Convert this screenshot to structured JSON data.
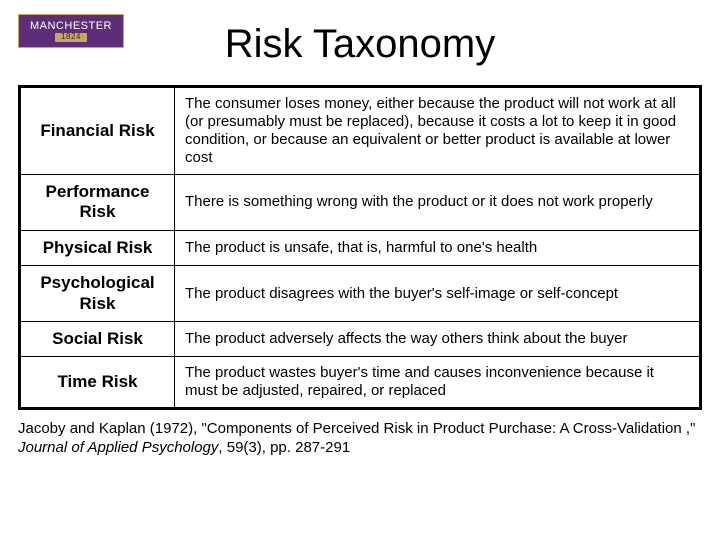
{
  "logo": {
    "text": "MANCHESTER",
    "year": "1824"
  },
  "title": "Risk Taxonomy",
  "table": {
    "rows": [
      {
        "label": "Financial Risk",
        "desc": "The consumer loses money, either because the product will not work at all (or presumably must be replaced), because it costs a lot to keep it in good condition, or because an equivalent or better product is available at lower cost"
      },
      {
        "label": "Performance Risk",
        "desc": "There is something wrong with the product or it does not work properly"
      },
      {
        "label": "Physical Risk",
        "desc": "The product is unsafe, that is, harmful to one's health"
      },
      {
        "label": "Psychological Risk",
        "desc": "The product disagrees with the buyer's self-image or self-concept"
      },
      {
        "label": "Social Risk",
        "desc": "The product adversely affects the way others think about the buyer"
      },
      {
        "label": "Time Risk",
        "desc": "The product wastes buyer's time and causes inconvenience because it must be adjusted, repaired, or replaced"
      }
    ]
  },
  "citation": {
    "prefix": "Jacoby and Kaplan (1972), \"Components of Perceived Risk in Product Purchase: A Cross-Validation ,\" ",
    "journal": "Journal of Applied Psychology",
    "suffix": ", 59(3), pp. 287-291"
  },
  "colors": {
    "logo_bg": "#5e2d79",
    "logo_border": "#c9a85a",
    "text": "#000000",
    "bg": "#ffffff"
  }
}
